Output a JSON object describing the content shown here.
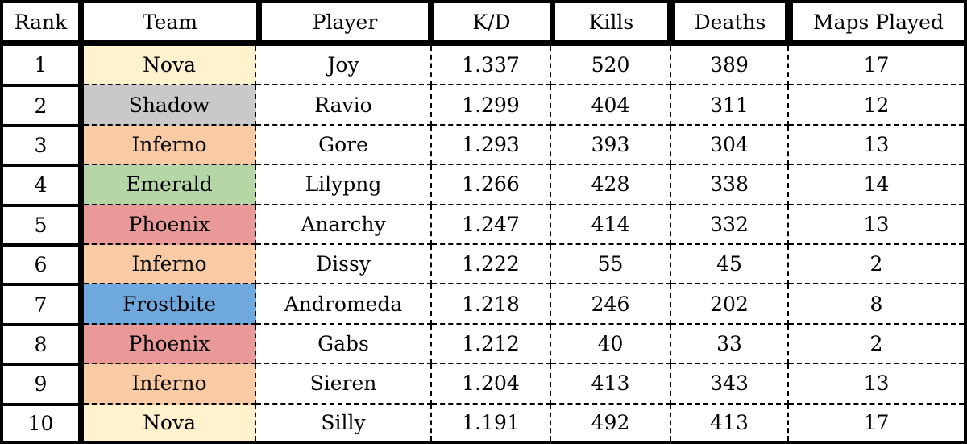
{
  "chart_data": {
    "type": "table",
    "columns": [
      "Rank",
      "Team",
      "Player",
      "K/D",
      "Kills",
      "Deaths",
      "Maps Played"
    ],
    "rows": [
      {
        "rank": "1",
        "team": "Nova",
        "player": "Joy",
        "kd": "1.337",
        "kills": "520",
        "deaths": "389",
        "maps": "17",
        "team_color": "#fff2cc"
      },
      {
        "rank": "2",
        "team": "Shadow",
        "player": "Ravio",
        "kd": "1.299",
        "kills": "404",
        "deaths": "311",
        "maps": "12",
        "team_color": "#c9c9c9"
      },
      {
        "rank": "3",
        "team": "Inferno",
        "player": "Gore",
        "kd": "1.293",
        "kills": "393",
        "deaths": "304",
        "maps": "13",
        "team_color": "#f8cba4"
      },
      {
        "rank": "4",
        "team": "Emerald",
        "player": "Lilypng",
        "kd": "1.266",
        "kills": "428",
        "deaths": "338",
        "maps": "14",
        "team_color": "#b5d7a6"
      },
      {
        "rank": "5",
        "team": "Phoenix",
        "player": "Anarchy",
        "kd": "1.247",
        "kills": "414",
        "deaths": "332",
        "maps": "13",
        "team_color": "#ea9999"
      },
      {
        "rank": "6",
        "team": "Inferno",
        "player": "Dissy",
        "kd": "1.222",
        "kills": "55",
        "deaths": "45",
        "maps": "2",
        "team_color": "#f8cba4"
      },
      {
        "rank": "7",
        "team": "Frostbite",
        "player": "Andromeda",
        "kd": "1.218",
        "kills": "246",
        "deaths": "202",
        "maps": "8",
        "team_color": "#6fa8dc"
      },
      {
        "rank": "8",
        "team": "Phoenix",
        "player": "Gabs",
        "kd": "1.212",
        "kills": "40",
        "deaths": "33",
        "maps": "2",
        "team_color": "#ea9999"
      },
      {
        "rank": "9",
        "team": "Inferno",
        "player": "Sieren",
        "kd": "1.204",
        "kills": "413",
        "deaths": "343",
        "maps": "13",
        "team_color": "#f8cba4"
      },
      {
        "rank": "10",
        "team": "Nova",
        "player": "Silly",
        "kd": "1.191",
        "kills": "492",
        "deaths": "413",
        "maps": "17",
        "team_color": "#fff2cc"
      }
    ]
  }
}
